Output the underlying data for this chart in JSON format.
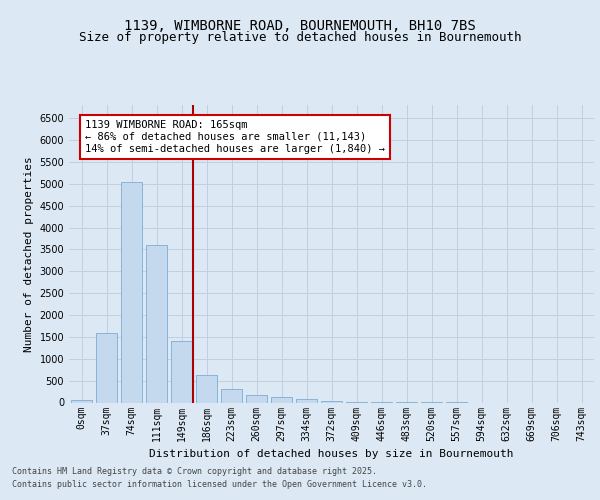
{
  "title_line1": "1139, WIMBORNE ROAD, BOURNEMOUTH, BH10 7BS",
  "title_line2": "Size of property relative to detached houses in Bournemouth",
  "xlabel": "Distribution of detached houses by size in Bournemouth",
  "ylabel": "Number of detached properties",
  "categories": [
    "0sqm",
    "37sqm",
    "74sqm",
    "111sqm",
    "149sqm",
    "186sqm",
    "223sqm",
    "260sqm",
    "297sqm",
    "334sqm",
    "372sqm",
    "409sqm",
    "446sqm",
    "483sqm",
    "520sqm",
    "557sqm",
    "594sqm",
    "632sqm",
    "669sqm",
    "706sqm",
    "743sqm"
  ],
  "values": [
    60,
    1600,
    5050,
    3600,
    1400,
    630,
    300,
    170,
    130,
    80,
    30,
    10,
    5,
    3,
    2,
    1,
    0,
    0,
    0,
    0,
    0
  ],
  "bar_color": "#c5d9ee",
  "bar_edge_color": "#7aadd4",
  "vline_color": "#aa0000",
  "annotation_text": "1139 WIMBORNE ROAD: 165sqm\n← 86% of detached houses are smaller (11,143)\n14% of semi-detached houses are larger (1,840) →",
  "annotation_box_color": "#ffffff",
  "annotation_box_edge": "#cc0000",
  "ylim": [
    0,
    6800
  ],
  "yticks": [
    0,
    500,
    1000,
    1500,
    2000,
    2500,
    3000,
    3500,
    4000,
    4500,
    5000,
    5500,
    6000,
    6500
  ],
  "grid_color": "#c0d0e0",
  "background_color": "#dce9f5",
  "footer_line1": "Contains HM Land Registry data © Crown copyright and database right 2025.",
  "footer_line2": "Contains public sector information licensed under the Open Government Licence v3.0.",
  "title_fontsize": 10,
  "subtitle_fontsize": 9,
  "tick_fontsize": 7,
  "label_fontsize": 8,
  "footer_fontsize": 6
}
